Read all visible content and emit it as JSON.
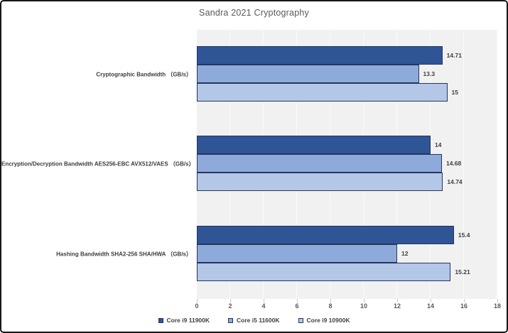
{
  "chart_data": {
    "type": "bar",
    "orientation": "horizontal",
    "title": "Sandra 2021 Cryptography",
    "categories": [
      "Cryptographic Bandwidth （GB/s）",
      "Encryption/Decryption Bandwidth AES256-EBC AVX512/VAES （GB/s）",
      "Hashing Bandwidth SHA2-256 SHA/HWA （GB/s）"
    ],
    "series": [
      {
        "name": "Core i9 11900K",
        "color": "#2F5597",
        "values": [
          14.71,
          14,
          15.4
        ],
        "labels": [
          "14.71",
          "14",
          "15.4"
        ]
      },
      {
        "name": "Core i5 11600K",
        "color": "#8EAADB",
        "values": [
          13.3,
          14.68,
          12
        ],
        "labels": [
          "13.3",
          "14.68",
          "12"
        ]
      },
      {
        "name": "Core i9 10900K",
        "color": "#B4C7E7",
        "values": [
          15,
          14.74,
          15.21
        ],
        "labels": [
          "15",
          "14.74",
          "15.21"
        ]
      }
    ],
    "xlim": [
      0,
      18
    ],
    "x_ticks": [
      "0",
      "2",
      "4",
      "6",
      "8",
      "10",
      "12",
      "14",
      "16",
      "18"
    ],
    "grid": true,
    "legend_position": "bottom",
    "colors": {
      "plot_bg": "#F1F1F1",
      "gridline": "#FAFAFA",
      "bar_border": "#24365C",
      "title_text": "#595959",
      "label_text": "#404040",
      "tick_text": "#595959"
    }
  }
}
